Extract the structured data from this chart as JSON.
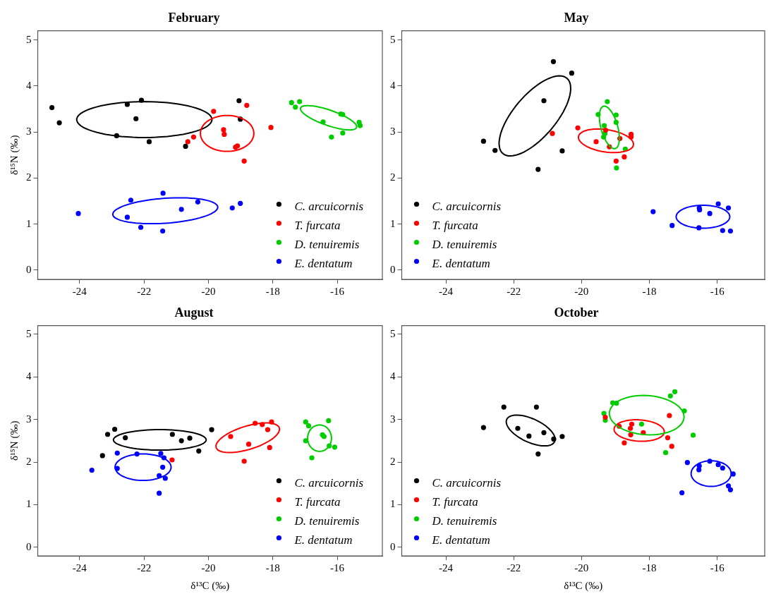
{
  "chart_data": [
    {
      "type": "scatter",
      "title": "February",
      "ylabel": "δ¹⁵N (‰)",
      "xlim": [
        -25.3,
        -14.6
      ],
      "ylim": [
        -0.2,
        5.2
      ],
      "xticks": [
        -24,
        -22,
        -20,
        -18,
        -16
      ],
      "yticks": [
        0,
        1,
        2,
        3,
        4,
        5
      ],
      "marker": "circle",
      "legend": "bottom right",
      "series": [
        {
          "name": "C. arcuicornis",
          "color": "#000000",
          "x": [
            -24.86,
            -24.63,
            -22.52,
            -22.08,
            -22.25,
            -22.85,
            -21.84,
            -20.71,
            -19.05,
            -19.01
          ],
          "values": [
            3.53,
            3.2,
            3.6,
            3.69,
            3.29,
            2.92,
            2.79,
            2.69,
            3.68,
            3.28
          ]
        },
        {
          "name": "T. furcata",
          "color": "#ff0000",
          "x": [
            -19.84,
            -18.81,
            -18.06,
            -20.64,
            -20.46,
            -19.53,
            -19.51,
            -19.16,
            -19.1,
            -18.89
          ],
          "values": [
            3.45,
            3.58,
            3.1,
            2.79,
            2.89,
            3.05,
            2.95,
            2.67,
            2.7,
            2.37
          ]
        },
        {
          "name": "D. tenuiremis",
          "color": "#00cc00",
          "x": [
            -17.42,
            -17.17,
            -17.3,
            -16.44,
            -15.89,
            -15.83,
            -15.32,
            -15.29,
            -15.83,
            -16.18
          ],
          "values": [
            3.64,
            3.66,
            3.54,
            3.22,
            3.39,
            3.38,
            3.21,
            3.14,
            2.98,
            2.89
          ]
        },
        {
          "name": "E. dentatum",
          "color": "#0000ff",
          "x": [
            -24.04,
            -22.41,
            -21.41,
            -22.52,
            -22.1,
            -21.42,
            -20.84,
            -20.33,
            -19.26,
            -19.01
          ],
          "values": [
            1.23,
            1.52,
            1.67,
            1.15,
            0.93,
            0.85,
            1.32,
            1.48,
            1.35,
            1.45
          ]
        }
      ]
    },
    {
      "type": "scatter",
      "title": "May",
      "xlim": [
        -25.3,
        -14.6
      ],
      "ylim": [
        -0.2,
        5.2
      ],
      "xticks": [
        -24,
        -22,
        -20,
        -18,
        -16
      ],
      "yticks": [
        0,
        1,
        2,
        3,
        4,
        5
      ],
      "marker": "circle",
      "legend": "bottom left",
      "series": [
        {
          "name": "C. arcuicornis",
          "color": "#000000",
          "x": [
            -20.83,
            -20.29,
            -21.11,
            -22.89,
            -22.55,
            -20.57,
            -21.28
          ],
          "values": [
            4.53,
            4.28,
            3.68,
            2.8,
            2.6,
            2.59,
            2.19
          ]
        },
        {
          "name": "T. furcata",
          "color": "#ff0000",
          "x": [
            -20.86,
            -20.11,
            -19.57,
            -19.29,
            -18.87,
            -18.54,
            -18.54,
            -18.74,
            -18.98,
            -19.18
          ],
          "values": [
            2.97,
            3.09,
            2.79,
            3.04,
            2.86,
            2.95,
            2.89,
            2.46,
            2.37,
            2.68
          ]
        },
        {
          "name": "D. tenuiremis",
          "color": "#00cc00",
          "x": [
            -19.24,
            -19.51,
            -18.98,
            -18.98,
            -19.33,
            -19.31,
            -19.35,
            -18.71,
            -18.97
          ],
          "values": [
            3.66,
            3.38,
            3.37,
            3.21,
            3.14,
            2.97,
            2.89,
            2.63,
            2.22
          ]
        },
        {
          "name": "E. dentatum",
          "color": "#0000ff",
          "x": [
            -17.89,
            -17.33,
            -16.53,
            -16.52,
            -16.54,
            -16.22,
            -15.97,
            -15.67,
            -15.84,
            -15.61
          ],
          "values": [
            1.27,
            0.97,
            1.35,
            1.31,
            0.92,
            1.23,
            1.44,
            1.35,
            0.86,
            0.85
          ]
        }
      ]
    },
    {
      "type": "scatter",
      "title": "August",
      "xlabel": "δ¹³C (‰)",
      "ylabel": "δ¹⁵N (‰)",
      "xlim": [
        -25.3,
        -14.6
      ],
      "ylim": [
        -0.2,
        5.2
      ],
      "xticks": [
        -24,
        -22,
        -20,
        -18,
        -16
      ],
      "yticks": [
        0,
        1,
        2,
        3,
        4,
        5
      ],
      "marker": "circle",
      "legend": "bottom right",
      "series": [
        {
          "name": "C. arcuicornis",
          "color": "#000000",
          "x": [
            -22.91,
            -23.13,
            -22.58,
            -23.29,
            -21.12,
            -20.84,
            -20.58,
            -20.3,
            -19.9
          ],
          "values": [
            2.77,
            2.65,
            2.57,
            2.15,
            2.65,
            2.5,
            2.56,
            2.26,
            2.76
          ]
        },
        {
          "name": "T. furcata",
          "color": "#ff0000",
          "x": [
            -19.31,
            -18.75,
            -18.55,
            -18.33,
            -18.16,
            -18.04,
            -18.1,
            -18.89,
            -21.13
          ],
          "values": [
            2.6,
            2.42,
            2.91,
            2.88,
            2.76,
            2.94,
            2.34,
            2.02,
            2.05
          ]
        },
        {
          "name": "D. tenuiremis",
          "color": "#00cc00",
          "x": [
            -16.98,
            -16.89,
            -16.27,
            -16.98,
            -16.46,
            -16.41,
            -16.25,
            -16.08,
            -16.79
          ],
          "values": [
            2.94,
            2.85,
            2.97,
            2.5,
            2.64,
            2.6,
            2.38,
            2.35,
            2.1
          ]
        },
        {
          "name": "E. dentatum",
          "color": "#0000ff",
          "x": [
            -22.83,
            -22.22,
            -21.48,
            -21.38,
            -23.62,
            -22.83,
            -21.42,
            -21.53,
            -21.34,
            -21.53
          ],
          "values": [
            2.21,
            2.19,
            2.2,
            2.1,
            1.81,
            1.85,
            1.88,
            1.68,
            1.62,
            1.27
          ]
        }
      ]
    },
    {
      "type": "scatter",
      "title": "October",
      "xlabel": "δ¹³C (‰)",
      "xlim": [
        -25.3,
        -14.6
      ],
      "ylim": [
        -0.2,
        5.2
      ],
      "xticks": [
        -24,
        -22,
        -20,
        -18,
        -16
      ],
      "yticks": [
        0,
        1,
        2,
        3,
        4,
        5
      ],
      "marker": "circle",
      "legend": "bottom left",
      "series": [
        {
          "name": "C. arcuicornis",
          "color": "#000000",
          "x": [
            -22.29,
            -21.33,
            -22.89,
            -21.88,
            -21.55,
            -21.11,
            -20.82,
            -20.57,
            -21.28
          ],
          "values": [
            3.29,
            3.29,
            2.81,
            2.79,
            2.61,
            2.69,
            2.54,
            2.6,
            2.19
          ]
        },
        {
          "name": "T. furcata",
          "color": "#ff0000",
          "x": [
            -19.3,
            -17.41,
            -18.89,
            -18.52,
            -18.56,
            -18.55,
            -18.18,
            -18.74,
            -17.46,
            -17.34
          ],
          "values": [
            3.05,
            3.09,
            2.84,
            2.89,
            2.79,
            2.64,
            2.69,
            2.45,
            2.57,
            2.37
          ]
        },
        {
          "name": "D. tenuiremis",
          "color": "#00cc00",
          "x": [
            -19.34,
            -19.3,
            -19.08,
            -18.97,
            -18.23,
            -17.38,
            -17.25,
            -16.97,
            -16.71,
            -17.52
          ],
          "values": [
            3.14,
            2.98,
            3.39,
            3.38,
            2.89,
            3.55,
            3.65,
            3.2,
            2.63,
            2.22
          ]
        },
        {
          "name": "E. dentatum",
          "color": "#0000ff",
          "x": [
            -16.88,
            -16.53,
            -16.54,
            -16.22,
            -15.97,
            -15.84,
            -15.53,
            -15.67,
            -15.61,
            -17.04
          ],
          "values": [
            1.99,
            1.91,
            1.82,
            2.02,
            1.94,
            1.86,
            1.72,
            1.44,
            1.35,
            1.28
          ]
        }
      ]
    }
  ]
}
